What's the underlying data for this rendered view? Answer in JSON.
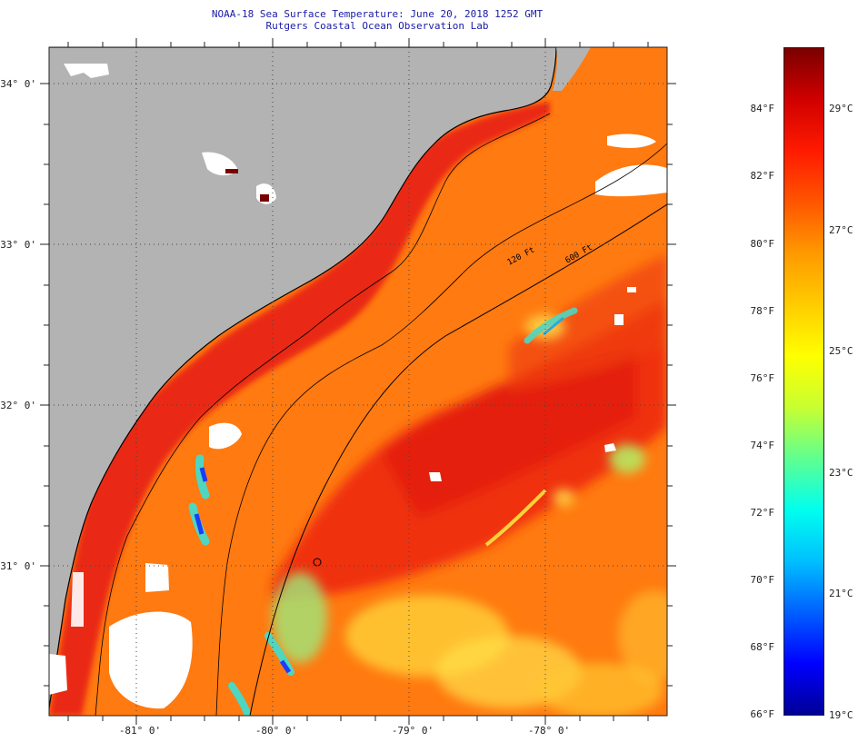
{
  "header": {
    "title_line1": "NOAA-18 Sea Surface Temperature:  June 20, 2018 1252 GMT",
    "title_line2": "Rutgers Coastal Ocean Observation Lab"
  },
  "map": {
    "lat_labels": [
      "34° 0'",
      "33° 0'",
      "32° 0'",
      "31° 0'"
    ],
    "lon_labels": [
      "-81° 0'",
      "-80° 0'",
      "-79° 0'",
      "-78° 0'"
    ],
    "isobath_labels": [
      "120 Ft",
      "600 Ft"
    ],
    "colors": {
      "land": "#b3b3b3",
      "cloud": "#ffffff",
      "sea_base": "#ff7a10",
      "warm": "#ee2a12",
      "coastal": "#e61e12",
      "cool": "#ffd23a",
      "cold": "#4fd6c0",
      "very_cold": "#1a3cff"
    }
  },
  "colorbar": {
    "fahrenheit": [
      "84°F",
      "82°F",
      "80°F",
      "78°F",
      "76°F",
      "74°F",
      "72°F",
      "70°F",
      "68°F",
      "66°F"
    ],
    "celsius": [
      "29°C",
      "27°C",
      "25°C",
      "23°C",
      "21°C",
      "19°C"
    ],
    "gradient": [
      "#000096",
      "#0000ff",
      "#0060ff",
      "#00c0ff",
      "#00ffee",
      "#60ff90",
      "#c8ff30",
      "#ffff00",
      "#ffcc00",
      "#ff9900",
      "#ff5500",
      "#ff1a00",
      "#d00000",
      "#7a0000"
    ]
  }
}
